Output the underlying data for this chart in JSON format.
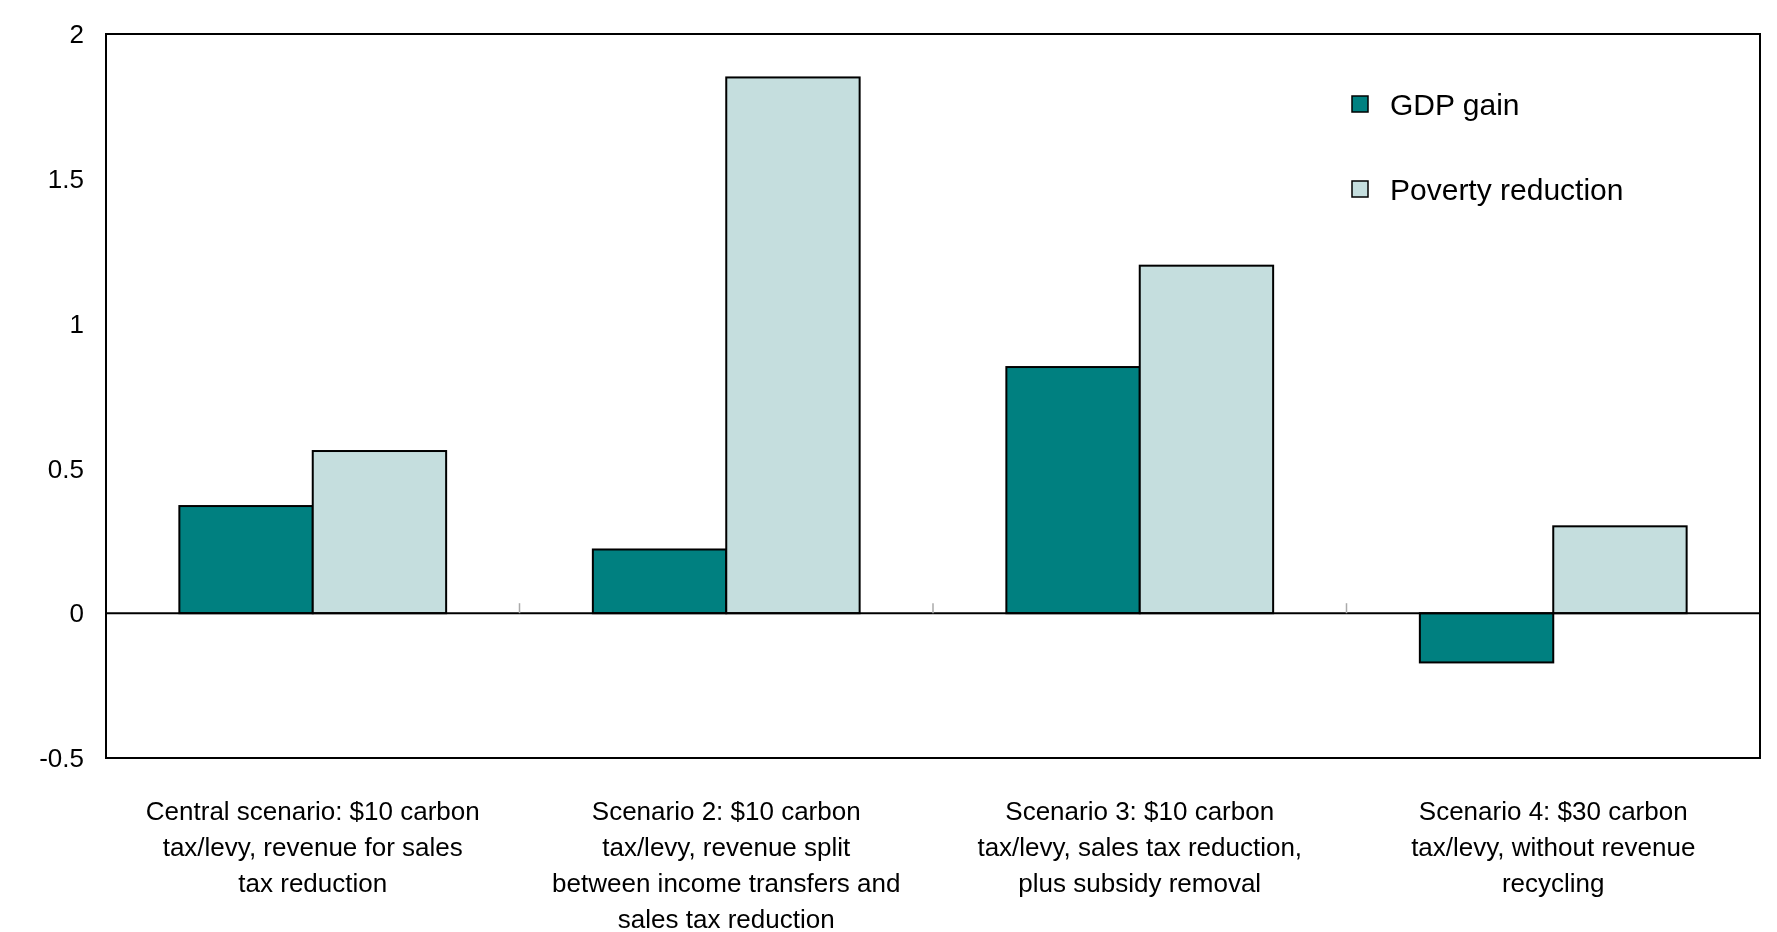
{
  "chart_data": {
    "type": "bar",
    "categories": [
      "Central scenario: $10 carbon tax/levy, revenue for sales tax reduction",
      "Scenario 2: $10 carbon tax/levy, revenue split between income transfers and sales tax reduction",
      "Scenario 3: $10 carbon tax/levy, sales tax reduction, plus subsidy removal",
      "Scenario 4: $30 carbon tax/levy, without revenue recycling"
    ],
    "series": [
      {
        "name": "GDP gain",
        "color": "#008080",
        "values": [
          0.37,
          0.22,
          0.85,
          -0.17
        ]
      },
      {
        "name": "Poverty reduction",
        "color": "#c5dede",
        "values": [
          0.56,
          1.85,
          1.2,
          0.3
        ]
      }
    ],
    "ylim": [
      -0.5,
      2
    ],
    "yticks": [
      -0.5,
      0,
      0.5,
      1,
      1.5,
      2
    ],
    "legend": "top right",
    "marker": "square"
  }
}
